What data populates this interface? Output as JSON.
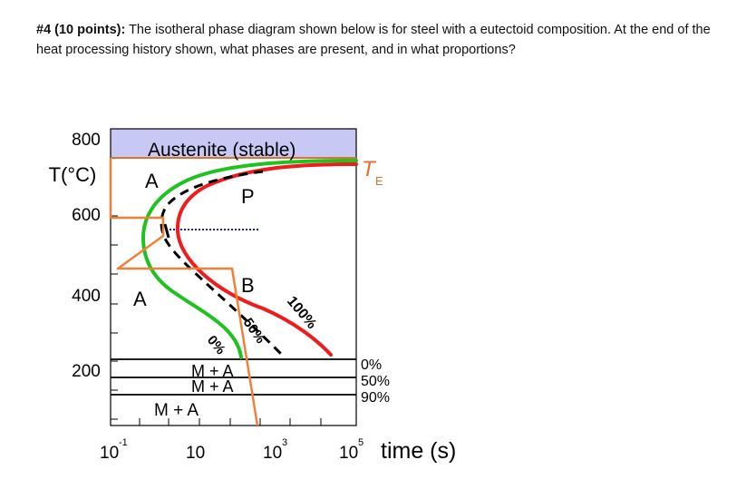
{
  "question": {
    "label": "#4 (10 points):",
    "text": "The isotheral phase diagram shown below is for steel with a eutectoid composition. At the end of the heat processing history shown, what phases are present, and in what proportions?"
  },
  "diagram": {
    "y_axis": {
      "label": "T(°C)",
      "ticks": [
        "800",
        "600",
        "400",
        "200"
      ]
    },
    "x_axis": {
      "label": "time (s)",
      "ticks": [
        {
          "base": "10",
          "exp": "-1"
        },
        {
          "base": "10",
          "exp": ""
        },
        {
          "base": "10",
          "exp": "3"
        },
        {
          "base": "10",
          "exp": "5"
        }
      ]
    },
    "region_labels": {
      "austenite_stable": "Austenite (stable)",
      "a_upper": "A",
      "a_lower": "A",
      "pearlite": "P",
      "bainite": "B",
      "martensite_austenite_1": "M + A",
      "martensite_austenite_2": "M + A",
      "martensite_austenite_3": "M + A"
    },
    "curve_labels": {
      "start": "0%",
      "mid": "50%",
      "finish": "100%"
    },
    "eutectoid_label": {
      "main": "T",
      "sub": "E"
    },
    "martensite_labels": [
      "0%",
      "50%",
      "90%"
    ],
    "colors": {
      "austenite_fill": "#c8c8f5",
      "start_curve": "#1fc21f",
      "finish_curve": "#ee1c1c",
      "mid_curve": "#000000",
      "heat_path": "#f08038",
      "eutectoid_line": "#e07030",
      "dotted_line": "#1a1aa0"
    }
  }
}
